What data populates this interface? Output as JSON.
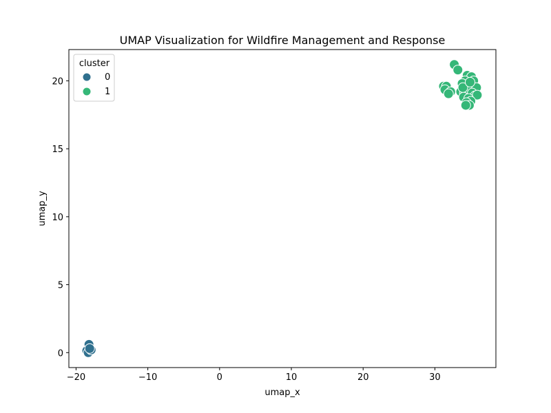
{
  "chart_data": {
    "type": "scatter",
    "title": "UMAP Visualization for Wildfire Management and Response",
    "xlabel": "umap_x",
    "ylabel": "umap_y",
    "xlim": [
      -21,
      38.5
    ],
    "ylim": [
      -1.1,
      22.3
    ],
    "xticks": [
      -20,
      -10,
      0,
      10,
      20,
      30
    ],
    "xtick_labels": [
      "−20",
      "−10",
      "0",
      "10",
      "20",
      "30"
    ],
    "yticks": [
      0,
      5,
      10,
      15,
      20
    ],
    "ytick_labels": [
      "0",
      "5",
      "10",
      "15",
      "20"
    ],
    "grid": false,
    "legend": {
      "title": "cluster",
      "placement": "top-left",
      "entries": [
        {
          "label": "0",
          "color": "#30708e"
        },
        {
          "label": "1",
          "color": "#35b778"
        }
      ]
    },
    "series": [
      {
        "name": "0",
        "color": "#30708e",
        "points": [
          [
            -18.2,
            0.6
          ],
          [
            -18.5,
            0.15
          ],
          [
            -18.3,
            0.0
          ],
          [
            -17.9,
            0.2
          ],
          [
            -18.1,
            0.3
          ]
        ]
      },
      {
        "name": "1",
        "color": "#35b778",
        "points": [
          [
            32.7,
            21.2
          ],
          [
            33.2,
            20.8
          ],
          [
            34.5,
            20.4
          ],
          [
            35.1,
            20.3
          ],
          [
            35.4,
            20.0
          ],
          [
            34.2,
            20.0
          ],
          [
            33.8,
            19.8
          ],
          [
            35.0,
            19.7
          ],
          [
            35.8,
            19.5
          ],
          [
            31.2,
            19.6
          ],
          [
            31.6,
            19.6
          ],
          [
            31.4,
            19.35
          ],
          [
            32.2,
            19.2
          ],
          [
            31.9,
            19.05
          ],
          [
            33.6,
            19.2
          ],
          [
            34.1,
            19.1
          ],
          [
            34.6,
            19.3
          ],
          [
            35.2,
            19.1
          ],
          [
            35.6,
            18.9
          ],
          [
            35.9,
            18.95
          ],
          [
            34.0,
            18.8
          ],
          [
            34.7,
            18.7
          ],
          [
            35.0,
            18.5
          ],
          [
            34.4,
            18.4
          ],
          [
            34.8,
            18.2
          ],
          [
            34.3,
            18.2
          ],
          [
            33.9,
            19.5
          ],
          [
            34.9,
            19.9
          ]
        ]
      }
    ]
  }
}
